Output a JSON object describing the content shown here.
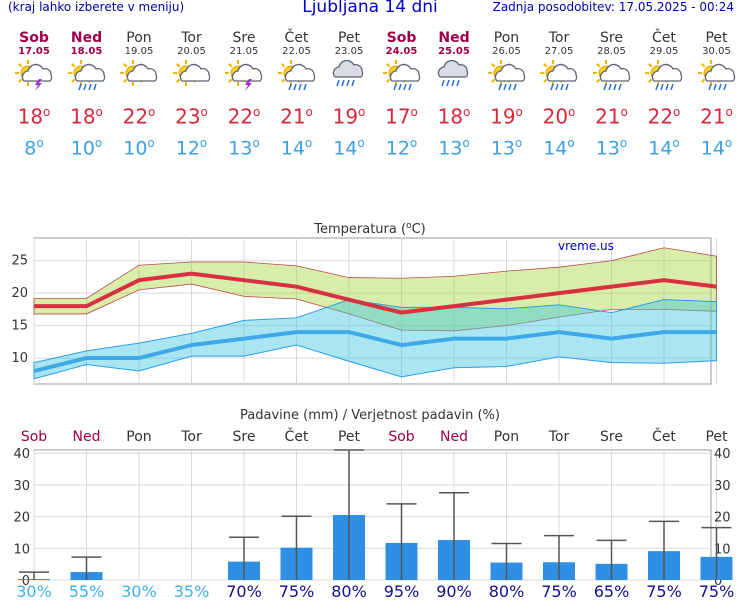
{
  "header": {
    "left_note": "(kraj lahko izberete v meniju)",
    "title": "Ljubljana 14 dni",
    "updated": "Zadnja posodobitev: 17.05.2025 - 00:24"
  },
  "days": [
    {
      "name": "Sob",
      "date": "17.05",
      "weekend": true,
      "icon": "sun-cloud-lightning-icon",
      "max": "18",
      "min": "8"
    },
    {
      "name": "Ned",
      "date": "18.05",
      "weekend": true,
      "icon": "sun-cloud-rain-icon",
      "max": "18",
      "min": "10"
    },
    {
      "name": "Pon",
      "date": "19.05",
      "weekend": false,
      "icon": "sun-cloud-icon",
      "max": "22",
      "min": "10"
    },
    {
      "name": "Tor",
      "date": "20.05",
      "weekend": false,
      "icon": "sun-cloud-icon",
      "max": "23",
      "min": "12"
    },
    {
      "name": "Sre",
      "date": "21.05",
      "weekend": false,
      "icon": "sun-cloud-lightning-icon",
      "max": "22",
      "min": "13"
    },
    {
      "name": "Čet",
      "date": "22.05",
      "weekend": false,
      "icon": "sun-cloud-rain-icon",
      "max": "21",
      "min": "14"
    },
    {
      "name": "Pet",
      "date": "23.05",
      "weekend": false,
      "icon": "cloud-rain-icon",
      "max": "19",
      "min": "14"
    },
    {
      "name": "Sob",
      "date": "24.05",
      "weekend": true,
      "icon": "sun-cloud-rain-icon",
      "max": "17",
      "min": "12"
    },
    {
      "name": "Ned",
      "date": "25.05",
      "weekend": true,
      "icon": "cloud-rain-icon",
      "max": "18",
      "min": "13"
    },
    {
      "name": "Pon",
      "date": "26.05",
      "weekend": false,
      "icon": "sun-cloud-rain-icon",
      "max": "19",
      "min": "13"
    },
    {
      "name": "Tor",
      "date": "27.05",
      "weekend": false,
      "icon": "sun-cloud-rain-icon",
      "max": "20",
      "min": "14"
    },
    {
      "name": "Sre",
      "date": "28.05",
      "weekend": false,
      "icon": "sun-cloud-rain-icon",
      "max": "21",
      "min": "13"
    },
    {
      "name": "Čet",
      "date": "29.05",
      "weekend": false,
      "icon": "sun-cloud-rain-icon",
      "max": "22",
      "min": "14"
    },
    {
      "name": "Pet",
      "date": "30.05",
      "weekend": false,
      "icon": "sun-cloud-rain-icon",
      "max": "21",
      "min": "14"
    }
  ],
  "units": {
    "degree": "o"
  },
  "chart_data": [
    {
      "type": "line",
      "title": "Temperatura (",
      "title_sup": "o",
      "title_end": "C)",
      "watermark": "vreme.us",
      "yticks": [
        10,
        15,
        20,
        25
      ],
      "ylim": [
        6,
        28.5
      ],
      "grid": true,
      "series": [
        {
          "values": [
            18,
            18,
            22,
            23,
            22,
            21,
            19,
            17,
            18,
            19,
            20,
            21,
            22,
            21
          ],
          "color": "#d83040"
        },
        {
          "values": [
            8,
            10,
            10,
            12,
            13,
            14,
            14,
            12,
            13,
            13,
            14,
            13,
            14,
            14
          ],
          "color": "#40a8e8"
        }
      ],
      "max_band_upper": [
        19.2,
        19.2,
        24.3,
        24.8,
        24.8,
        24.2,
        22.4,
        22.3,
        22.6,
        23.4,
        24,
        25,
        27,
        25.7
      ],
      "max_band_lower": [
        16.8,
        16.8,
        20.5,
        21.4,
        19.5,
        19.1,
        16.8,
        14.3,
        14.2,
        15,
        16.3,
        17.5,
        17.5,
        17.2
      ],
      "min_band_upper": [
        9.3,
        11.1,
        12.3,
        13.8,
        15.8,
        16.2,
        19,
        17.8,
        17.8,
        17.6,
        18.2,
        17,
        19,
        18.7
      ],
      "min_band_lower": [
        6.8,
        9,
        8,
        10.3,
        10.3,
        12,
        9.5,
        7.1,
        8.5,
        8.7,
        10.2,
        9.3,
        9.2,
        9.6
      ]
    },
    {
      "type": "bar",
      "title": "Padavine (mm) / Verjetnost padavin (%)",
      "yticks": [
        0,
        10,
        20,
        30,
        40
      ],
      "ylim": [
        0,
        41
      ],
      "grid": true,
      "categories": [
        "Sob",
        "Ned",
        "Pon",
        "Tor",
        "Sre",
        "Čet",
        "Pet",
        "Sob",
        "Ned",
        "Pon",
        "Tor",
        "Sre",
        "Čet",
        "Pet"
      ],
      "weekend": [
        true,
        true,
        false,
        false,
        false,
        false,
        false,
        true,
        true,
        false,
        false,
        false,
        false,
        false
      ],
      "values": [
        0.3,
        2.5,
        0,
        0,
        5.8,
        10.2,
        20.5,
        11.7,
        12.6,
        5.5,
        5.6,
        5.1,
        9.1,
        7.3
      ],
      "error_high": [
        2.5,
        7.2,
        0,
        0,
        13.5,
        20.1,
        41,
        24,
        27.5,
        11.5,
        14,
        12.5,
        18.5,
        16.5
      ],
      "probabilities": [
        "30%",
        "55%",
        "30%",
        "35%",
        "70%",
        "75%",
        "80%",
        "95%",
        "90%",
        "80%",
        "75%",
        "65%",
        "75%",
        "75%"
      ],
      "prob_colors": [
        "#40b0e8",
        "#40b0e8",
        "#40b0e8",
        "#40b0e8",
        "#10108c",
        "#10108c",
        "#10108c",
        "#10108c",
        "#10108c",
        "#10108c",
        "#10108c",
        "#10108c",
        "#10108c",
        "#10108c"
      ],
      "bar_color": "#2e8fe4"
    }
  ]
}
